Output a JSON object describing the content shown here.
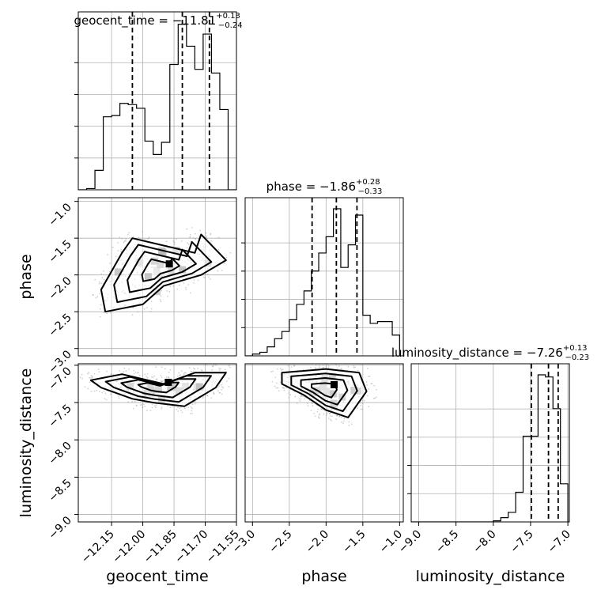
{
  "chart_data": {
    "type": "corner",
    "parameters": [
      "geocent_time",
      "phase",
      "luminosity_distance"
    ],
    "ranges": {
      "geocent_time": [
        -12.31,
        -11.55
      ],
      "phase": [
        -3.1,
        -0.95
      ],
      "luminosity_distance": [
        -9.1,
        -6.98
      ]
    },
    "ticks": {
      "geocent_time": [
        "−12.15",
        "−12.00",
        "−11.85",
        "−11.70",
        "−11.55"
      ],
      "geocent_time_values": [
        -12.15,
        -12.0,
        -11.85,
        -11.7,
        -11.55
      ],
      "phase_x": [
        "−3.0",
        "−2.5",
        "−2.0",
        "−1.5",
        "−1.0"
      ],
      "phase_values": [
        -3.0,
        -2.5,
        -2.0,
        -1.5,
        -1.0
      ],
      "phase_y": [
        "−1.0",
        "−1.5",
        "−2.0",
        "−2.5",
        "−3.0"
      ],
      "luminosity_distance": [
        "−9.0",
        "−8.5",
        "−8.0",
        "−7.5",
        "−7.0"
      ],
      "luminosity_distance_values": [
        -9.0,
        -8.5,
        -8.0,
        -7.5,
        -7.0
      ],
      "luminosity_distance_y": [
        "−7.0",
        "−7.5",
        "−8.0",
        "−8.5",
        "−9.0"
      ]
    },
    "titles": [
      {
        "param": "geocent_time",
        "label": "geocent_time = ",
        "value": "−11.81",
        "plus": "+0.13",
        "minus": "−0.24"
      },
      {
        "param": "phase",
        "label": "phase = ",
        "value": "−1.86",
        "plus": "+0.28",
        "minus": "−0.33"
      },
      {
        "param": "luminosity_distance",
        "label": "luminosity_distance = ",
        "value": "−7.26",
        "plus": "+0.13",
        "minus": "−0.23"
      }
    ],
    "quantiles": {
      "geocent_time": [
        -12.05,
        -11.81,
        -11.68
      ],
      "phase": [
        -2.19,
        -1.86,
        -1.58
      ],
      "luminosity_distance": [
        -7.49,
        -7.26,
        -7.13
      ]
    },
    "histograms": {
      "geocent_time": {
        "edges": [
          -12.31,
          -12.27,
          -12.23,
          -12.19,
          -12.15,
          -12.11,
          -12.07,
          -12.03,
          -11.99,
          -11.95,
          -11.91,
          -11.87,
          -11.83,
          -11.79,
          -11.75,
          -11.71,
          -11.67,
          -11.63,
          -11.59,
          -11.55
        ],
        "counts": [
          0,
          1,
          16,
          60,
          61,
          71,
          70,
          67,
          40,
          29,
          39,
          103,
          136,
          118,
          99,
          128,
          96,
          66,
          0
        ]
      },
      "phase": {
        "edges": [
          -3.1,
          -3.0,
          -2.9,
          -2.8,
          -2.7,
          -2.6,
          -2.5,
          -2.4,
          -2.3,
          -2.2,
          -2.1,
          -2.0,
          -1.9,
          -1.8,
          -1.7,
          -1.6,
          -1.5,
          -1.4,
          -1.3,
          -1.2,
          -1.1,
          -1.0
        ],
        "counts": [
          0,
          2,
          4,
          10,
          19,
          27,
          40,
          57,
          72,
          94,
          114,
          132,
          163,
          98,
          123,
          156,
          45,
          36,
          38,
          38,
          23
        ]
      },
      "luminosity_distance": {
        "edges": [
          -9.1,
          -9.0,
          -8.9,
          -8.8,
          -8.7,
          -8.6,
          -8.5,
          -8.4,
          -8.3,
          -8.2,
          -8.1,
          -8.0,
          -7.9,
          -7.8,
          -7.7,
          -7.6,
          -7.5,
          -7.4,
          -7.3,
          -7.2,
          -7.1,
          -7.0
        ],
        "counts": [
          0,
          0,
          0,
          0,
          0,
          0,
          0,
          0,
          0,
          0,
          0,
          1,
          4,
          9,
          28,
          81,
          81,
          139,
          137,
          107,
          36
        ]
      }
    },
    "contour_regions": {
      "phase_vs_geocent_time": [
        {
          "x": -12.2,
          "y": -2.2
        },
        {
          "x": -12.1,
          "y": -1.7
        },
        {
          "x": -12.05,
          "y": -1.5
        },
        {
          "x": -11.9,
          "y": -1.6
        },
        {
          "x": -11.75,
          "y": -1.7
        },
        {
          "x": -11.72,
          "y": -1.45
        },
        {
          "x": -11.6,
          "y": -1.8
        },
        {
          "x": -11.72,
          "y": -2.0
        },
        {
          "x": -11.9,
          "y": -2.15
        },
        {
          "x": -12.0,
          "y": -2.4
        },
        {
          "x": -12.18,
          "y": -2.5
        }
      ],
      "luminosity_distance_vs_geocent_time": [
        {
          "x": -12.25,
          "y": -7.2
        },
        {
          "x": -12.1,
          "y": -7.12
        },
        {
          "x": -11.9,
          "y": -7.25
        },
        {
          "x": -11.75,
          "y": -7.1
        },
        {
          "x": -11.6,
          "y": -7.1
        },
        {
          "x": -11.65,
          "y": -7.3
        },
        {
          "x": -11.8,
          "y": -7.55
        },
        {
          "x": -11.95,
          "y": -7.5
        },
        {
          "x": -12.05,
          "y": -7.45
        },
        {
          "x": -12.2,
          "y": -7.3
        }
      ],
      "luminosity_distance_vs_phase": [
        {
          "x": -2.6,
          "y": -7.1
        },
        {
          "x": -2.0,
          "y": -7.05
        },
        {
          "x": -1.55,
          "y": -7.1
        },
        {
          "x": -1.45,
          "y": -7.35
        },
        {
          "x": -1.7,
          "y": -7.7
        },
        {
          "x": -2.0,
          "y": -7.6
        },
        {
          "x": -2.3,
          "y": -7.4
        },
        {
          "x": -2.6,
          "y": -7.25
        }
      ]
    },
    "grid": true
  }
}
